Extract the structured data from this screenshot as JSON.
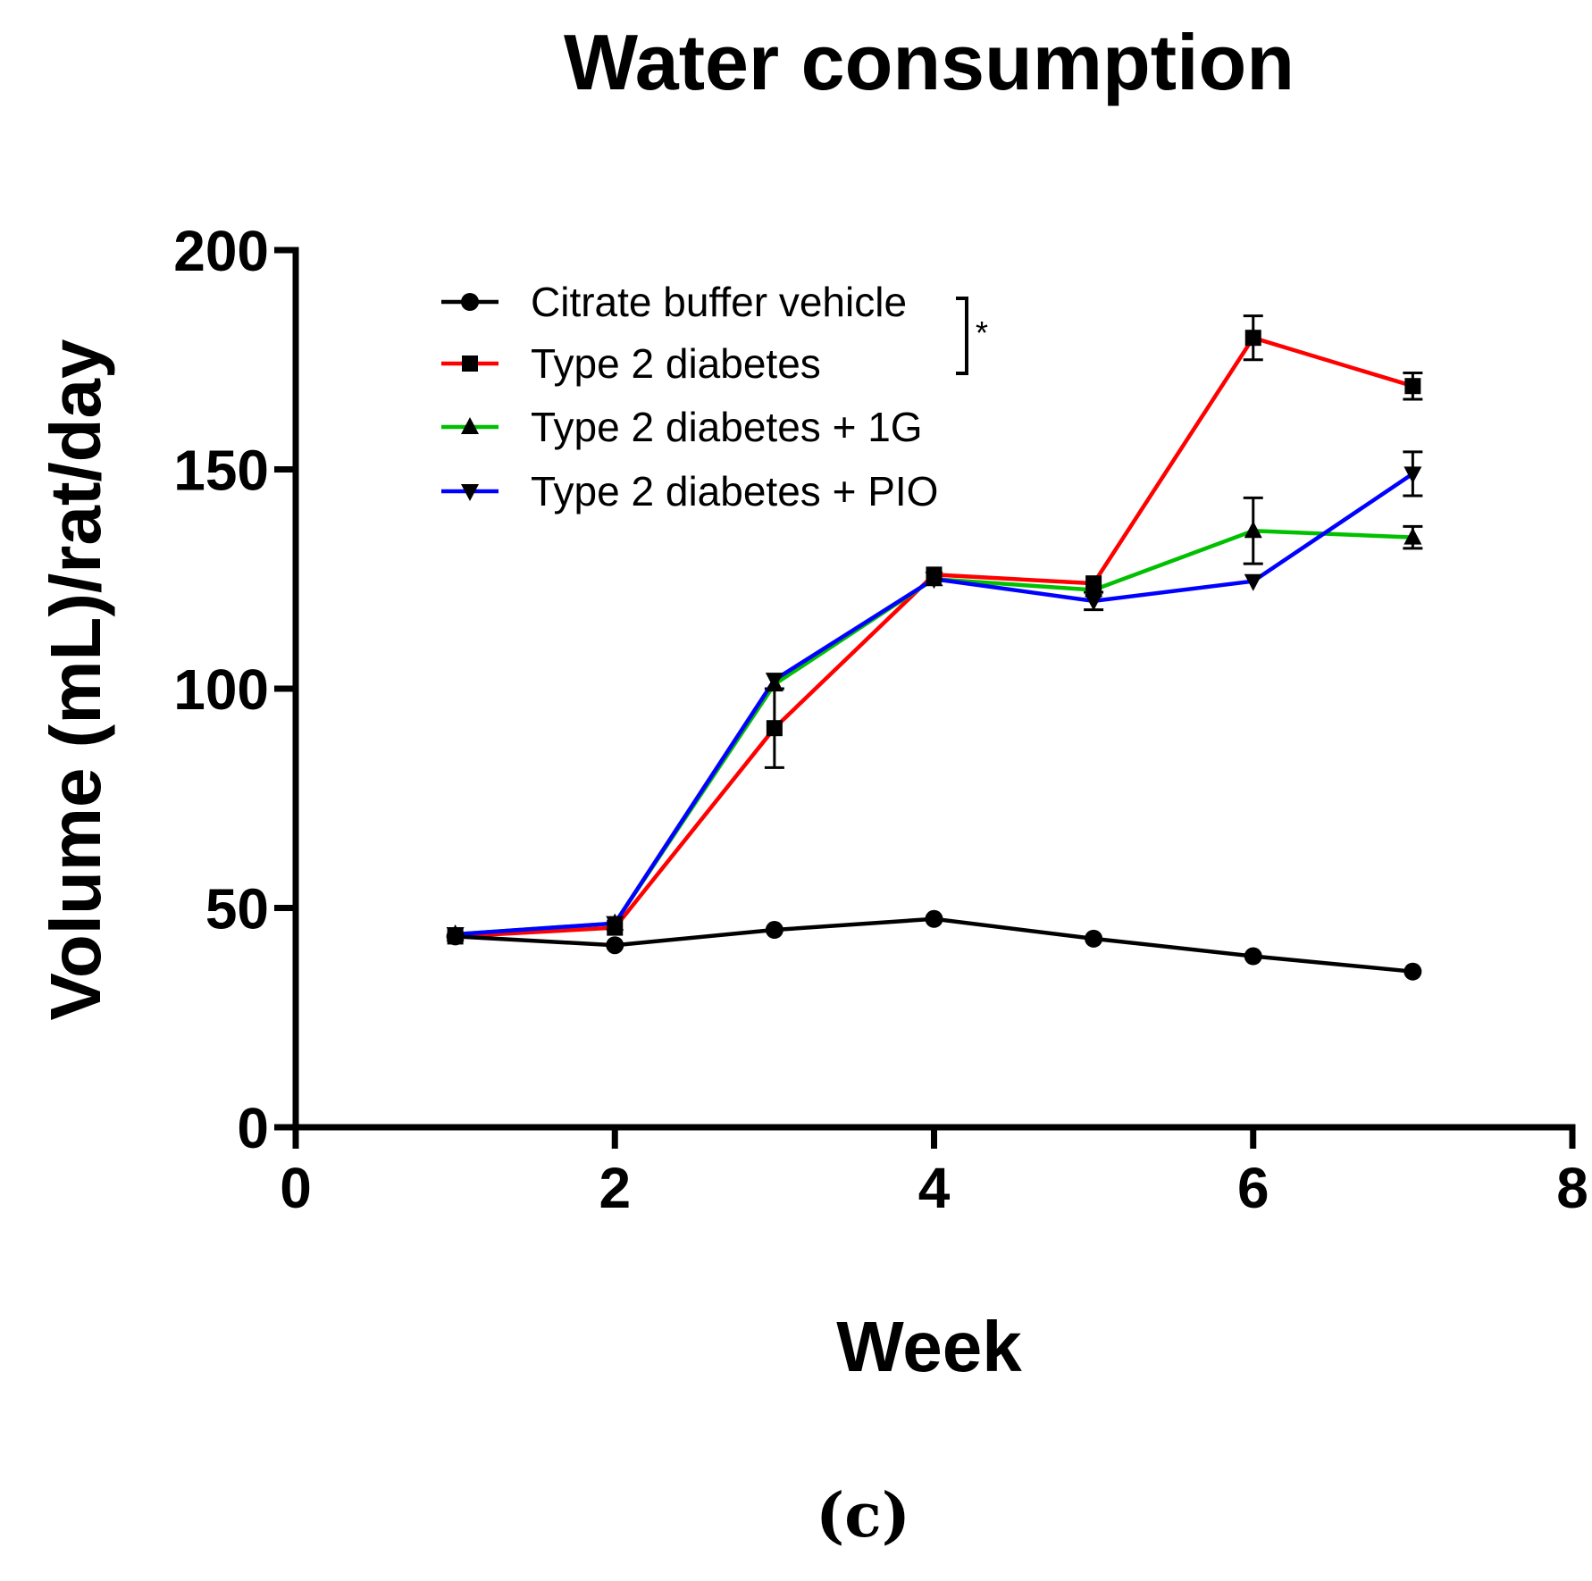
{
  "chart_data": {
    "type": "line",
    "title": "Water consumption",
    "xlabel": "Week",
    "ylabel": "Volume (mL)/rat/day",
    "panel_label": "(c)",
    "xlim": [
      0,
      8
    ],
    "ylim": [
      0,
      200
    ],
    "xticks": [
      0,
      2,
      4,
      6,
      8
    ],
    "yticks": [
      0,
      50,
      100,
      150,
      200
    ],
    "grid": false,
    "legend_position": "top-left",
    "x": [
      1,
      2,
      3,
      4,
      5,
      6,
      7
    ],
    "series": [
      {
        "name": "Citrate buffer vehicle",
        "color": "#000000",
        "marker": "circle",
        "values": [
          43.5,
          41.5,
          45,
          47.5,
          43,
          39,
          35.5
        ],
        "errors": [
          0,
          0,
          0,
          0,
          0,
          0,
          0
        ]
      },
      {
        "name": "Type 2 diabetes",
        "color": "#ff0000",
        "marker": "square",
        "values": [
          43.5,
          45.5,
          91,
          126,
          124,
          180,
          169
        ],
        "errors": [
          0,
          0,
          9,
          0,
          0,
          5,
          3
        ]
      },
      {
        "name": "Type 2 diabetes + 1G",
        "color": "#00c000",
        "marker": "triangle-up",
        "values": [
          44,
          46.5,
          101,
          125,
          122.5,
          136,
          134.5
        ],
        "errors": [
          0,
          0,
          0,
          0,
          0,
          7.5,
          2.5
        ]
      },
      {
        "name": "Type 2 diabetes + PIO",
        "color": "#0000ff",
        "marker": "triangle-down",
        "values": [
          44,
          46.5,
          102,
          125,
          120,
          124.5,
          149
        ],
        "errors": [
          0,
          0,
          0,
          0,
          2,
          0,
          5
        ]
      }
    ],
    "annotations": [
      {
        "text": "*",
        "brackets_series": [
          "Citrate buffer vehicle",
          "Type 2 diabetes"
        ]
      }
    ]
  }
}
